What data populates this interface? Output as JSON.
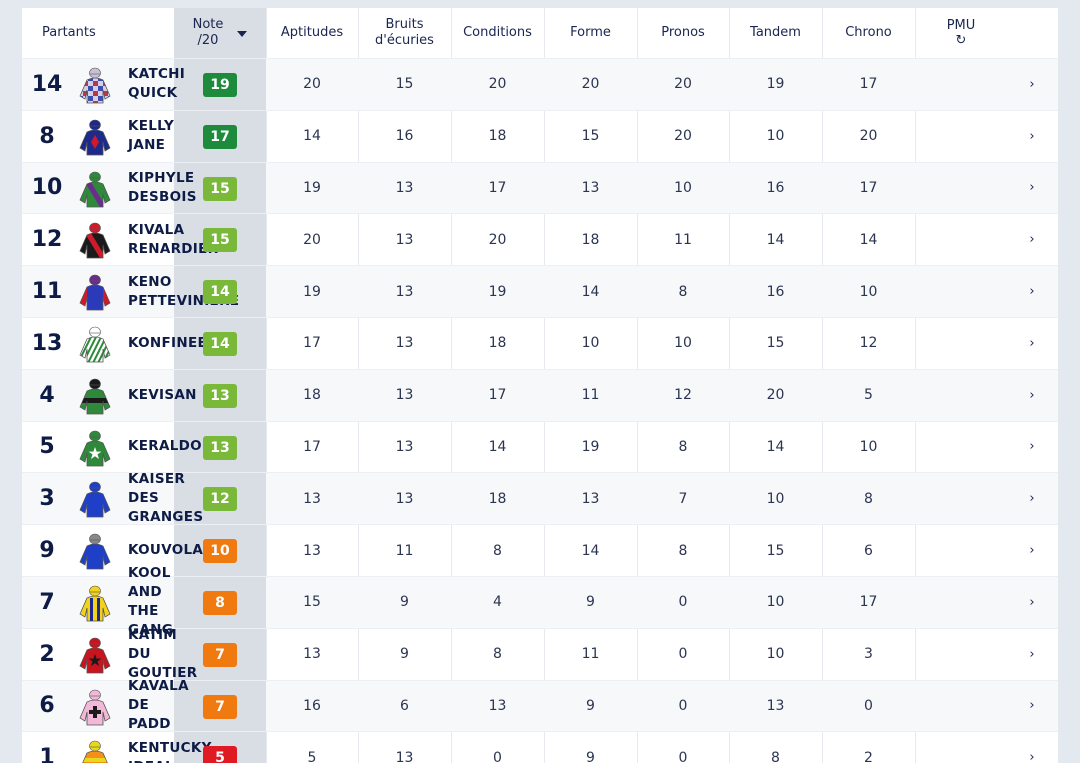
{
  "header": {
    "partants": "Partants",
    "note_line1": "Note",
    "note_line2": "/20",
    "aptitudes": "Aptitudes",
    "bruits_line1": "Bruits",
    "bruits_line2": "d'écuries",
    "conditions": "Conditions",
    "forme": "Forme",
    "pronos": "Pronos",
    "tandem": "Tandem",
    "chrono": "Chrono",
    "pmu": "PMU",
    "refresh_icon": "↻"
  },
  "colors": {
    "dark_green": "#1e8a3c",
    "light_green": "#7ab83a",
    "orange": "#f07a10",
    "red": "#e01a22"
  },
  "rows": [
    {
      "num": "14",
      "name": "KATCHI\nQUICK",
      "note": "19",
      "color": "#1e8a3c",
      "aptitudes": "20",
      "bruits": "15",
      "conditions": "20",
      "forme": "20",
      "pronos": "20",
      "tandem": "19",
      "chrono": "17",
      "chev": "›",
      "silk": {
        "body": "#d9cfe3",
        "pattern": "checks",
        "c1": "#b33a4a",
        "c2": "#3a4fb3",
        "cap": "#c9c0d6"
      }
    },
    {
      "num": "8",
      "name": "KELLY\nJANE",
      "note": "17",
      "color": "#1e8a3c",
      "aptitudes": "14",
      "bruits": "16",
      "conditions": "18",
      "forme": "15",
      "pronos": "20",
      "tandem": "10",
      "chrono": "20",
      "chev": "›",
      "silk": {
        "body": "#1d2a8c",
        "pattern": "diamond",
        "c1": "#d01a2a",
        "c2": "#1d2a8c",
        "cap": "#1d2a8c"
      }
    },
    {
      "num": "10",
      "name": "KIPHYLE\nDESBOIS",
      "note": "15",
      "color": "#7ab83a",
      "aptitudes": "19",
      "bruits": "13",
      "conditions": "17",
      "forme": "13",
      "pronos": "10",
      "tandem": "16",
      "chrono": "17",
      "chev": "›",
      "silk": {
        "body": "#2e8a3a",
        "pattern": "sash",
        "c1": "#6a2d8c",
        "c2": "#2e8a3a",
        "cap": "#2e8a3a"
      }
    },
    {
      "num": "12",
      "name": "KIVALA\nRENARDIER",
      "note": "15",
      "color": "#7ab83a",
      "aptitudes": "20",
      "bruits": "13",
      "conditions": "20",
      "forme": "18",
      "pronos": "11",
      "tandem": "14",
      "chrono": "14",
      "chev": "›",
      "silk": {
        "body": "#1a1a1a",
        "pattern": "sash",
        "c1": "#d01a2a",
        "c2": "#1a1a1a",
        "cap": "#d01a2a"
      }
    },
    {
      "num": "11",
      "name": "KENO\nPETTEVINIERE",
      "note": "14",
      "color": "#7ab83a",
      "aptitudes": "19",
      "bruits": "13",
      "conditions": "19",
      "forme": "14",
      "pronos": "8",
      "tandem": "16",
      "chrono": "10",
      "chev": "›",
      "silk": {
        "body": "#2a3ab8",
        "pattern": "sleeves",
        "c1": "#d01a2a",
        "c2": "#2a3ab8",
        "cap": "#6a2d8c"
      }
    },
    {
      "num": "13",
      "name": "KONFINEE",
      "note": "14",
      "color": "#7ab83a",
      "aptitudes": "17",
      "bruits": "13",
      "conditions": "18",
      "forme": "10",
      "pronos": "10",
      "tandem": "15",
      "chrono": "12",
      "chev": "›",
      "silk": {
        "body": "#ffffff",
        "pattern": "stripes",
        "c1": "#2e8a3a",
        "c2": "#ffffff",
        "cap": "#ffffff"
      }
    },
    {
      "num": "4",
      "name": "KEVISAN",
      "note": "13",
      "color": "#7ab83a",
      "aptitudes": "18",
      "bruits": "13",
      "conditions": "17",
      "forme": "11",
      "pronos": "12",
      "tandem": "20",
      "chrono": "5",
      "chev": "›",
      "silk": {
        "body": "#2e8a3a",
        "pattern": "hoop",
        "c1": "#1a1a1a",
        "c2": "#2e8a3a",
        "cap": "#1a1a1a"
      }
    },
    {
      "num": "5",
      "name": "KERALDO",
      "note": "13",
      "color": "#7ab83a",
      "aptitudes": "17",
      "bruits": "13",
      "conditions": "14",
      "forme": "19",
      "pronos": "8",
      "tandem": "14",
      "chrono": "10",
      "chev": "›",
      "silk": {
        "body": "#2e8a3a",
        "pattern": "star",
        "c1": "#ffffff",
        "c2": "#2e8a3a",
        "cap": "#2e8a3a"
      }
    },
    {
      "num": "3",
      "name": "KAISER\nDES\nGRANGES",
      "note": "12",
      "color": "#7ab83a",
      "aptitudes": "13",
      "bruits": "13",
      "conditions": "18",
      "forme": "13",
      "pronos": "7",
      "tandem": "10",
      "chrono": "8",
      "chev": "›",
      "silk": {
        "body": "#1f3fc8",
        "pattern": "plain",
        "c1": "#1f3fc8",
        "c2": "#1f3fc8",
        "cap": "#1f3fc8"
      }
    },
    {
      "num": "9",
      "name": "KOUVOLA",
      "note": "10",
      "color": "#f07a10",
      "aptitudes": "13",
      "bruits": "11",
      "conditions": "8",
      "forme": "14",
      "pronos": "8",
      "tandem": "15",
      "chrono": "6",
      "chev": "›",
      "silk": {
        "body": "#1f3fc8",
        "pattern": "plain",
        "c1": "#1f3fc8",
        "c2": "#1f3fc8",
        "cap": "#888888"
      }
    },
    {
      "num": "7",
      "name": "KOOL\nAND\nTHE\nGANG",
      "note": "8",
      "color": "#f07a10",
      "aptitudes": "15",
      "bruits": "9",
      "conditions": "4",
      "forme": "9",
      "pronos": "0",
      "tandem": "10",
      "chrono": "17",
      "chev": "›",
      "silk": {
        "body": "#f2d21a",
        "pattern": "braces",
        "c1": "#1d2a8c",
        "c2": "#f2d21a",
        "cap": "#f2d21a"
      }
    },
    {
      "num": "2",
      "name": "KATIM\nDU\nGOUTIER",
      "note": "7",
      "color": "#f07a10",
      "aptitudes": "13",
      "bruits": "9",
      "conditions": "8",
      "forme": "11",
      "pronos": "0",
      "tandem": "10",
      "chrono": "3",
      "chev": "›",
      "silk": {
        "body": "#c8141e",
        "pattern": "star",
        "c1": "#1a1a1a",
        "c2": "#c8141e",
        "cap": "#c8141e"
      }
    },
    {
      "num": "6",
      "name": "KAVALA\nDE\nPADD",
      "note": "7",
      "color": "#f07a10",
      "aptitudes": "16",
      "bruits": "6",
      "conditions": "13",
      "forme": "9",
      "pronos": "0",
      "tandem": "13",
      "chrono": "0",
      "chev": "›",
      "silk": {
        "body": "#f2b8d8",
        "pattern": "cross",
        "c1": "#1a1a1a",
        "c2": "#f2b8d8",
        "cap": "#f2b8d8"
      }
    },
    {
      "num": "1",
      "name": "KENTUCKY\nIDEAL",
      "note": "5",
      "color": "#e01a22",
      "aptitudes": "5",
      "bruits": "13",
      "conditions": "0",
      "forme": "9",
      "pronos": "0",
      "tandem": "8",
      "chrono": "2",
      "chev": "›",
      "silk": {
        "body": "#f2901a",
        "pattern": "hoops",
        "c1": "#e8d81a",
        "c2": "#f2901a",
        "cap": "#e8d81a"
      }
    }
  ]
}
